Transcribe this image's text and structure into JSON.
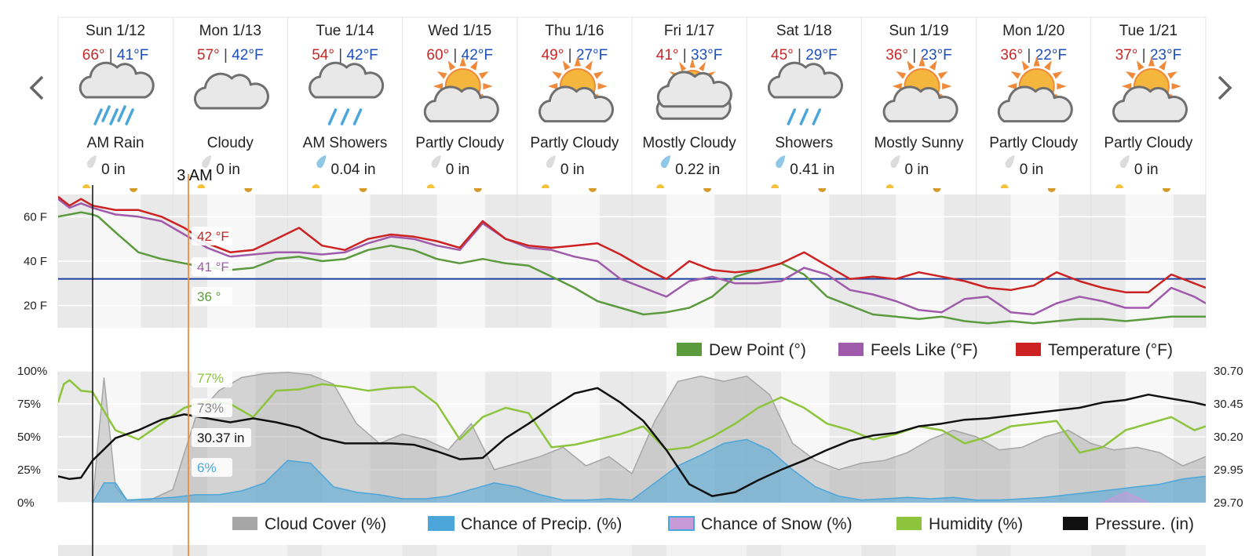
{
  "nav": {
    "prev_label": "‹",
    "next_label": "›"
  },
  "days": [
    {
      "name": "Sun 1/12",
      "hi": "66°",
      "lo": "41°F",
      "condition": "AM Rain",
      "icon": "rain-icon",
      "precip": "0 in",
      "drop": "dry"
    },
    {
      "name": "Mon 1/13",
      "hi": "57°",
      "lo": "42°F",
      "condition": "Cloudy",
      "icon": "cloud-icon",
      "precip": "0 in",
      "drop": "dry"
    },
    {
      "name": "Tue 1/14",
      "hi": "54°",
      "lo": "42°F",
      "condition": "AM Showers",
      "icon": "showers-icon",
      "precip": "0.04 in",
      "drop": "wet"
    },
    {
      "name": "Wed 1/15",
      "hi": "60°",
      "lo": "42°F",
      "condition": "Partly Cloudy",
      "icon": "partly-cloudy-icon",
      "precip": "0 in",
      "drop": "dry"
    },
    {
      "name": "Thu 1/16",
      "hi": "49°",
      "lo": "27°F",
      "condition": "Partly Cloudy",
      "icon": "partly-cloudy-icon",
      "precip": "0 in",
      "drop": "dry"
    },
    {
      "name": "Fri 1/17",
      "hi": "41°",
      "lo": "33°F",
      "condition": "Mostly Cloudy",
      "icon": "mostly-cloudy-icon",
      "precip": "0.22 in",
      "drop": "wet"
    },
    {
      "name": "Sat 1/18",
      "hi": "45°",
      "lo": "29°F",
      "condition": "Showers",
      "icon": "showers-icon",
      "precip": "0.41 in",
      "drop": "wet"
    },
    {
      "name": "Sun 1/19",
      "hi": "36°",
      "lo": "23°F",
      "condition": "Mostly Sunny",
      "icon": "partly-cloudy-icon",
      "precip": "0 in",
      "drop": "dry"
    },
    {
      "name": "Mon 1/20",
      "hi": "36°",
      "lo": "22°F",
      "condition": "Partly Cloudy",
      "icon": "partly-cloudy-icon",
      "precip": "0 in",
      "drop": "dry"
    },
    {
      "name": "Tue 1/21",
      "hi": "37°",
      "lo": "23°F",
      "condition": "Partly Cloudy",
      "icon": "partly-cloudy-icon",
      "precip": "0 in",
      "drop": "dry"
    }
  ],
  "separator": " | ",
  "cursor": {
    "time_label": "3 AM",
    "temperature": "42 °F",
    "feels_like": "41 °F",
    "dew_point": "36 °",
    "humidity": "77%",
    "cloud_cover": "73%",
    "pressure": "30.37 in",
    "precip_chance": "6%"
  },
  "colors": {
    "temperature": "#cc2222",
    "feels_like": "#a05aab",
    "dew_point": "#5c9a3e",
    "freezing_line": "#1f3f9e",
    "cloud_cover": "#a6a6a6",
    "precip": "#4da6d9",
    "snow": "#c89ad8",
    "humidity": "#8cc43c",
    "pressure": "#111111",
    "cursor": "#f28c38",
    "sun": "#f4b63c",
    "sun_rays": "#ef8a3a"
  },
  "chart_data": [
    {
      "type": "line",
      "x_unit": "day",
      "x_range": [
        0,
        10
      ],
      "ylim": [
        10,
        70
      ],
      "y_ticks": [
        "20 F",
        "40 F",
        "60 F"
      ],
      "freezing_line": 32,
      "series": [
        {
          "name": "Dew Point (°)",
          "color": "#5c9a3e",
          "x": [
            0,
            0.1,
            0.2,
            0.3,
            0.35,
            0.5,
            0.7,
            0.9,
            1.1,
            1.3,
            1.5,
            1.7,
            1.9,
            2.1,
            2.3,
            2.5,
            2.7,
            2.9,
            3.1,
            3.3,
            3.5,
            3.7,
            3.9,
            4.1,
            4.3,
            4.5,
            4.7,
            4.9,
            5.1,
            5.3,
            5.5,
            5.7,
            5.9,
            6.1,
            6.3,
            6.5,
            6.7,
            6.9,
            7.1,
            7.3,
            7.5,
            7.7,
            7.9,
            8.1,
            8.3,
            8.5,
            8.7,
            8.9,
            9.1,
            9.3,
            9.5,
            9.7,
            9.9,
            10
          ],
          "y": [
            60,
            61,
            62,
            61,
            60,
            53,
            44,
            41,
            39,
            37,
            36,
            37,
            41,
            42,
            40,
            41,
            45,
            47,
            45,
            41,
            39,
            41,
            39,
            38,
            33,
            28,
            22,
            19,
            16,
            17,
            19,
            24,
            33,
            36,
            39,
            34,
            24,
            20,
            16,
            15,
            14,
            15,
            13,
            12,
            13,
            12,
            13,
            14,
            14,
            13,
            14,
            15,
            15,
            15
          ]
        },
        {
          "name": "Feels Like (°F)",
          "color": "#a05aab",
          "x": [
            0,
            0.1,
            0.2,
            0.3,
            0.5,
            0.7,
            0.9,
            1.1,
            1.3,
            1.5,
            1.7,
            1.9,
            2.1,
            2.3,
            2.5,
            2.7,
            2.9,
            3.1,
            3.3,
            3.5,
            3.7,
            3.9,
            4.1,
            4.3,
            4.5,
            4.7,
            4.9,
            5.1,
            5.3,
            5.5,
            5.7,
            5.9,
            6.1,
            6.3,
            6.5,
            6.7,
            6.9,
            7.1,
            7.3,
            7.5,
            7.7,
            7.9,
            8.1,
            8.3,
            8.5,
            8.7,
            8.9,
            9.1,
            9.3,
            9.5,
            9.7,
            9.9,
            10
          ],
          "y": [
            68,
            64,
            66,
            64,
            61,
            60,
            58,
            52,
            46,
            42,
            43,
            44,
            44,
            43,
            44,
            48,
            51,
            50,
            47,
            45,
            57,
            50,
            46,
            45,
            42,
            40,
            32,
            28,
            24,
            31,
            33,
            30,
            30,
            31,
            37,
            34,
            27,
            25,
            22,
            18,
            17,
            23,
            24,
            17,
            16,
            21,
            24,
            22,
            19,
            19,
            28,
            24,
            21
          ]
        },
        {
          "name": "Temperature (°F)",
          "color": "#cc2222",
          "x": [
            0,
            0.1,
            0.2,
            0.3,
            0.5,
            0.7,
            0.9,
            1.1,
            1.3,
            1.5,
            1.7,
            1.9,
            2.1,
            2.3,
            2.5,
            2.7,
            2.9,
            3.1,
            3.3,
            3.5,
            3.7,
            3.9,
            4.1,
            4.3,
            4.5,
            4.7,
            4.9,
            5.1,
            5.3,
            5.5,
            5.7,
            5.9,
            6.1,
            6.3,
            6.5,
            6.7,
            6.9,
            7.1,
            7.3,
            7.5,
            7.7,
            7.9,
            8.1,
            8.3,
            8.5,
            8.7,
            8.9,
            9.1,
            9.3,
            9.5,
            9.7,
            9.9,
            10
          ],
          "y": [
            69,
            65,
            68,
            65,
            63,
            63,
            60,
            55,
            48,
            44,
            45,
            50,
            55,
            47,
            45,
            50,
            52,
            51,
            49,
            46,
            58,
            50,
            47,
            46,
            47,
            48,
            43,
            37,
            32,
            40,
            36,
            35,
            36,
            39,
            44,
            38,
            32,
            33,
            32,
            35,
            33,
            31,
            28,
            27,
            29,
            35,
            31,
            28,
            26,
            26,
            34,
            30,
            28
          ]
        }
      ]
    },
    {
      "type": "area",
      "x_unit": "day",
      "x_range": [
        0,
        10
      ],
      "ylim": [
        0,
        100
      ],
      "y_ticks": [
        "0%",
        "25%",
        "50%",
        "75%",
        "100%"
      ],
      "y2lim": [
        29.7,
        30.7
      ],
      "y2_ticks": [
        "29.70",
        "29.95",
        "30.20",
        "30.45",
        "30.70"
      ],
      "series": [
        {
          "name": "Cloud Cover (%)",
          "color": "#a6a6a6",
          "axis": "left",
          "x": [
            0.3,
            0.4,
            0.5,
            0.6,
            0.8,
            1,
            1.2,
            1.4,
            1.6,
            1.8,
            2,
            2.2,
            2.4,
            2.6,
            2.8,
            3,
            3.2,
            3.4,
            3.6,
            3.8,
            4,
            4.2,
            4.4,
            4.6,
            4.8,
            5,
            5.2,
            5.4,
            5.6,
            5.8,
            6,
            6.2,
            6.4,
            6.6,
            6.8,
            7,
            7.2,
            7.4,
            7.6,
            7.8,
            8,
            8.2,
            8.4,
            8.6,
            8.8,
            9,
            9.2,
            9.4,
            9.6,
            9.8,
            10
          ],
          "y": [
            0,
            95,
            12,
            2,
            2,
            10,
            65,
            85,
            95,
            98,
            99,
            97,
            90,
            60,
            45,
            52,
            48,
            40,
            60,
            25,
            30,
            35,
            42,
            28,
            35,
            22,
            62,
            92,
            96,
            92,
            96,
            82,
            45,
            32,
            25,
            30,
            32,
            38,
            48,
            55,
            50,
            40,
            42,
            50,
            55,
            45,
            40,
            42,
            38,
            28,
            35
          ]
        },
        {
          "name": "Chance of Precip. (%)",
          "color": "#4da6d9",
          "axis": "left",
          "x": [
            0.3,
            0.4,
            0.5,
            0.6,
            0.8,
            1,
            1.2,
            1.4,
            1.6,
            1.8,
            2,
            2.2,
            2.4,
            2.6,
            2.8,
            3,
            3.2,
            3.4,
            3.6,
            3.8,
            4,
            4.2,
            4.4,
            4.6,
            4.8,
            5,
            5.2,
            5.4,
            5.6,
            5.8,
            6,
            6.2,
            6.4,
            6.6,
            6.8,
            7,
            7.2,
            7.4,
            7.6,
            7.8,
            8,
            8.2,
            8.4,
            8.6,
            8.8,
            9,
            9.2,
            9.4,
            9.6,
            9.8,
            10
          ],
          "y": [
            0,
            15,
            15,
            2,
            3,
            4,
            6,
            6,
            9,
            15,
            32,
            30,
            12,
            8,
            6,
            3,
            3,
            5,
            10,
            15,
            12,
            6,
            2,
            2,
            3,
            2,
            15,
            28,
            36,
            45,
            48,
            40,
            25,
            12,
            5,
            2,
            3,
            4,
            3,
            4,
            2,
            2,
            3,
            4,
            6,
            8,
            10,
            12,
            14,
            18,
            20
          ]
        },
        {
          "name": "Chance of Snow (%)",
          "color": "#c89ad8",
          "axis": "left",
          "x": [
            9.1,
            9.3,
            9.5
          ],
          "y": [
            0,
            8,
            0
          ]
        },
        {
          "name": "Humidity (%)",
          "color": "#8cc43c",
          "axis": "left",
          "x": [
            0,
            0.05,
            0.1,
            0.2,
            0.3,
            0.5,
            0.7,
            0.9,
            1.1,
            1.3,
            1.5,
            1.7,
            1.9,
            2.1,
            2.3,
            2.5,
            2.7,
            2.9,
            3.1,
            3.3,
            3.5,
            3.7,
            3.9,
            4.1,
            4.3,
            4.5,
            4.7,
            4.9,
            5.1,
            5.3,
            5.5,
            5.7,
            5.9,
            6.1,
            6.3,
            6.5,
            6.7,
            6.9,
            7.1,
            7.3,
            7.5,
            7.7,
            7.9,
            8.1,
            8.3,
            8.5,
            8.7,
            8.9,
            9.1,
            9.3,
            9.5,
            9.7,
            9.9,
            10
          ],
          "y": [
            76,
            90,
            93,
            85,
            84,
            55,
            48,
            60,
            72,
            77,
            75,
            65,
            85,
            86,
            90,
            88,
            85,
            87,
            88,
            75,
            48,
            65,
            72,
            68,
            42,
            44,
            48,
            52,
            58,
            40,
            42,
            50,
            60,
            72,
            80,
            72,
            60,
            55,
            48,
            52,
            58,
            55,
            45,
            50,
            58,
            60,
            62,
            38,
            42,
            55,
            60,
            65,
            55,
            58
          ]
        },
        {
          "name": "Pressure. (in)",
          "color": "#111111",
          "axis": "right",
          "x": [
            0,
            0.1,
            0.2,
            0.3,
            0.5,
            0.7,
            0.9,
            1.1,
            1.3,
            1.5,
            1.7,
            1.9,
            2.1,
            2.3,
            2.5,
            2.7,
            2.9,
            3.1,
            3.3,
            3.5,
            3.7,
            3.9,
            4.1,
            4.3,
            4.5,
            4.7,
            4.9,
            5.1,
            5.3,
            5.5,
            5.7,
            5.9,
            6.1,
            6.3,
            6.5,
            6.7,
            6.9,
            7.1,
            7.3,
            7.5,
            7.7,
            7.9,
            8.1,
            8.3,
            8.5,
            8.7,
            8.9,
            9.1,
            9.3,
            9.5,
            9.7,
            9.9,
            10
          ],
          "y": [
            29.9,
            29.88,
            29.89,
            30.02,
            30.19,
            30.25,
            30.33,
            30.37,
            30.34,
            30.31,
            30.34,
            30.31,
            30.27,
            30.19,
            30.15,
            30.15,
            30.15,
            30.14,
            30.09,
            30.03,
            30.04,
            30.19,
            30.3,
            30.42,
            30.53,
            30.57,
            30.46,
            30.32,
            30.1,
            29.84,
            29.75,
            29.78,
            29.87,
            29.95,
            30.02,
            30.1,
            30.17,
            30.21,
            30.23,
            30.28,
            30.3,
            30.33,
            30.34,
            30.36,
            30.38,
            30.4,
            30.42,
            30.46,
            30.48,
            30.52,
            30.49,
            30.46,
            30.44
          ]
        }
      ]
    }
  ],
  "legend1": [
    {
      "label": "Dew Point (°)",
      "color": "#5c9a3e"
    },
    {
      "label": "Feels Like (°F)",
      "color": "#a05aab"
    },
    {
      "label": "Temperature (°F)",
      "color": "#cc2222"
    }
  ],
  "legend2": [
    {
      "label": "Cloud Cover (%)",
      "color": "#a6a6a6"
    },
    {
      "label": "Chance of Precip. (%)",
      "color": "#4da6d9"
    },
    {
      "label": "Chance of Snow (%)",
      "color": "#c89ad8"
    },
    {
      "label": "Humidity (%)",
      "color": "#8cc43c"
    },
    {
      "label": "Pressure. (in)",
      "color": "#111111"
    }
  ]
}
